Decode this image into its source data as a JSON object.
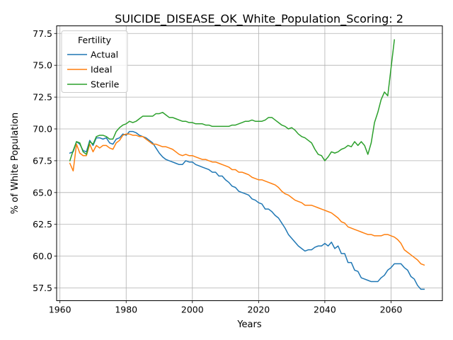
{
  "chart_data": {
    "type": "line",
    "title": "SUICIDE_DISEASE_OK_White_Population_Scoring: 2",
    "xlabel": "Years",
    "ylabel": "% of White Population",
    "xlim": [
      1959,
      2075.5
    ],
    "ylim": [
      56.5,
      78.1
    ],
    "xticks": [
      1960,
      1980,
      2000,
      2020,
      2040,
      2060
    ],
    "yticks": [
      57.5,
      60.0,
      62.5,
      65.0,
      67.5,
      70.0,
      72.5,
      75.0,
      77.5
    ],
    "xtick_labels": [
      "1960",
      "1980",
      "2000",
      "2020",
      "2040",
      "2060"
    ],
    "ytick_labels": [
      "57.5",
      "60.0",
      "62.5",
      "65.0",
      "67.5",
      "70.0",
      "72.5",
      "75.0",
      "77.5"
    ],
    "grid": true,
    "legend": {
      "title": "Fertility",
      "position": "top-left"
    },
    "series": [
      {
        "name": "Actual",
        "color": "#1f77b4",
        "x": [
          1963,
          1964,
          1965,
          1966,
          1967,
          1968,
          1969,
          1970,
          1971,
          1972,
          1973,
          1974,
          1975,
          1976,
          1977,
          1978,
          1979,
          1980,
          1981,
          1982,
          1983,
          1984,
          1985,
          1986,
          1987,
          1988,
          1989,
          1990,
          1991,
          1992,
          1993,
          1994,
          1995,
          1996,
          1997,
          1998,
          1999,
          2000,
          2001,
          2002,
          2003,
          2004,
          2005,
          2006,
          2007,
          2008,
          2009,
          2010,
          2011,
          2012,
          2013,
          2014,
          2015,
          2016,
          2017,
          2018,
          2019,
          2020,
          2021,
          2022,
          2023,
          2024,
          2025,
          2026,
          2027,
          2028,
          2029,
          2030,
          2031,
          2032,
          2033,
          2034,
          2035,
          2036,
          2037,
          2038,
          2039,
          2040,
          2041,
          2042,
          2043,
          2044,
          2045,
          2046,
          2047,
          2048,
          2049,
          2050,
          2051,
          2052,
          2053,
          2054,
          2055,
          2056,
          2057,
          2058,
          2059,
          2060,
          2061,
          2062,
          2063,
          2064,
          2065,
          2066,
          2067,
          2068,
          2069,
          2070
        ],
        "y": [
          68.1,
          68.2,
          69.0,
          68.8,
          68.3,
          68.2,
          69.1,
          68.7,
          69.3,
          69.3,
          69.2,
          69.3,
          68.9,
          68.8,
          69.2,
          69.3,
          69.6,
          69.5,
          69.8,
          69.8,
          69.7,
          69.5,
          69.4,
          69.3,
          69.1,
          68.9,
          68.5,
          68.1,
          67.8,
          67.6,
          67.5,
          67.4,
          67.3,
          67.2,
          67.2,
          67.5,
          67.4,
          67.4,
          67.2,
          67.1,
          67.0,
          66.9,
          66.8,
          66.6,
          66.6,
          66.3,
          66.3,
          66.0,
          65.8,
          65.5,
          65.4,
          65.1,
          65.0,
          64.9,
          64.8,
          64.5,
          64.4,
          64.2,
          64.1,
          63.7,
          63.7,
          63.5,
          63.2,
          63.0,
          62.6,
          62.2,
          61.7,
          61.4,
          61.1,
          60.8,
          60.6,
          60.4,
          60.5,
          60.5,
          60.7,
          60.8,
          60.8,
          61.0,
          60.8,
          61.1,
          60.6,
          60.8,
          60.2,
          60.2,
          59.5,
          59.5,
          58.9,
          58.8,
          58.3,
          58.2,
          58.1,
          58.0,
          58.0,
          58.0,
          58.3,
          58.5,
          58.9,
          59.1,
          59.4,
          59.4,
          59.4,
          59.1,
          58.9,
          58.4,
          58.2,
          57.7,
          57.4,
          57.4
        ]
      },
      {
        "name": "Ideal",
        "color": "#ff7f0e",
        "x": [
          1963,
          1964,
          1965,
          1966,
          1967,
          1968,
          1969,
          1970,
          1971,
          1972,
          1973,
          1974,
          1975,
          1976,
          1977,
          1978,
          1979,
          1980,
          1981,
          1982,
          1983,
          1984,
          1985,
          1986,
          1987,
          1988,
          1989,
          1990,
          1991,
          1992,
          1993,
          1994,
          1995,
          1996,
          1997,
          1998,
          1999,
          2000,
          2001,
          2002,
          2003,
          2004,
          2005,
          2006,
          2007,
          2008,
          2009,
          2010,
          2011,
          2012,
          2013,
          2014,
          2015,
          2016,
          2017,
          2018,
          2019,
          2020,
          2021,
          2022,
          2023,
          2024,
          2025,
          2026,
          2027,
          2028,
          2029,
          2030,
          2031,
          2032,
          2033,
          2034,
          2035,
          2036,
          2037,
          2038,
          2039,
          2040,
          2041,
          2042,
          2043,
          2044,
          2045,
          2046,
          2047,
          2048,
          2049,
          2050,
          2051,
          2052,
          2053,
          2054,
          2055,
          2056,
          2057,
          2058,
          2059,
          2060,
          2061,
          2062,
          2063,
          2064,
          2065,
          2066,
          2067,
          2068,
          2069,
          2070
        ],
        "y": [
          67.3,
          66.7,
          68.8,
          68.1,
          67.9,
          67.9,
          68.8,
          68.2,
          68.7,
          68.5,
          68.7,
          68.7,
          68.5,
          68.4,
          68.9,
          69.1,
          69.5,
          69.6,
          69.6,
          69.5,
          69.5,
          69.4,
          69.4,
          69.2,
          69.0,
          68.8,
          68.8,
          68.7,
          68.6,
          68.6,
          68.5,
          68.4,
          68.2,
          68.0,
          67.9,
          68.0,
          67.9,
          67.9,
          67.8,
          67.7,
          67.6,
          67.6,
          67.5,
          67.4,
          67.4,
          67.3,
          67.2,
          67.1,
          67.0,
          66.8,
          66.8,
          66.6,
          66.6,
          66.5,
          66.4,
          66.2,
          66.1,
          66.0,
          66.0,
          65.9,
          65.8,
          65.7,
          65.6,
          65.4,
          65.1,
          64.9,
          64.8,
          64.6,
          64.4,
          64.3,
          64.2,
          64.0,
          64.0,
          64.0,
          63.9,
          63.8,
          63.7,
          63.6,
          63.5,
          63.4,
          63.2,
          63.0,
          62.7,
          62.6,
          62.3,
          62.2,
          62.1,
          62.0,
          61.9,
          61.8,
          61.7,
          61.7,
          61.6,
          61.6,
          61.6,
          61.7,
          61.7,
          61.6,
          61.5,
          61.3,
          61.0,
          60.5,
          60.3,
          60.1,
          59.9,
          59.7,
          59.4,
          59.3
        ]
      },
      {
        "name": "Sterile",
        "color": "#2ca02c",
        "x": [
          1963,
          1964,
          1965,
          1966,
          1967,
          1968,
          1969,
          1970,
          1971,
          1972,
          1973,
          1974,
          1975,
          1976,
          1977,
          1978,
          1979,
          1980,
          1981,
          1982,
          1983,
          1984,
          1985,
          1986,
          1987,
          1988,
          1989,
          1990,
          1991,
          1992,
          1993,
          1994,
          1995,
          1996,
          1997,
          1998,
          1999,
          2000,
          2001,
          2002,
          2003,
          2004,
          2005,
          2006,
          2007,
          2008,
          2009,
          2010,
          2011,
          2012,
          2013,
          2014,
          2015,
          2016,
          2017,
          2018,
          2019,
          2020,
          2021,
          2022,
          2023,
          2024,
          2025,
          2026,
          2027,
          2028,
          2029,
          2030,
          2031,
          2032,
          2033,
          2034,
          2035,
          2036,
          2037,
          2038,
          2039,
          2040,
          2041,
          2042,
          2043,
          2044,
          2045,
          2046,
          2047,
          2048,
          2049,
          2050,
          2051,
          2052,
          2053,
          2054,
          2055,
          2056,
          2057,
          2058,
          2059,
          2060,
          2061
        ],
        "y": [
          67.5,
          68.3,
          69.0,
          68.9,
          68.2,
          68.0,
          69.0,
          68.8,
          69.4,
          69.5,
          69.5,
          69.4,
          69.2,
          69.2,
          69.8,
          70.1,
          70.3,
          70.4,
          70.6,
          70.5,
          70.6,
          70.8,
          71.0,
          71.0,
          71.0,
          71.0,
          71.2,
          71.2,
          71.3,
          71.1,
          70.9,
          70.9,
          70.8,
          70.7,
          70.6,
          70.6,
          70.5,
          70.5,
          70.4,
          70.4,
          70.4,
          70.3,
          70.3,
          70.2,
          70.2,
          70.2,
          70.2,
          70.2,
          70.2,
          70.3,
          70.3,
          70.4,
          70.5,
          70.6,
          70.6,
          70.7,
          70.6,
          70.6,
          70.6,
          70.7,
          70.9,
          70.9,
          70.7,
          70.5,
          70.3,
          70.2,
          70.0,
          70.1,
          69.9,
          69.6,
          69.4,
          69.3,
          69.1,
          68.9,
          68.4,
          68.0,
          67.9,
          67.5,
          67.8,
          68.2,
          68.1,
          68.2,
          68.4,
          68.5,
          68.7,
          68.6,
          69.0,
          68.7,
          69.0,
          68.7,
          68.0,
          68.9,
          70.5,
          71.3,
          72.3,
          72.9,
          72.6,
          74.8,
          77.0
        ]
      }
    ]
  }
}
